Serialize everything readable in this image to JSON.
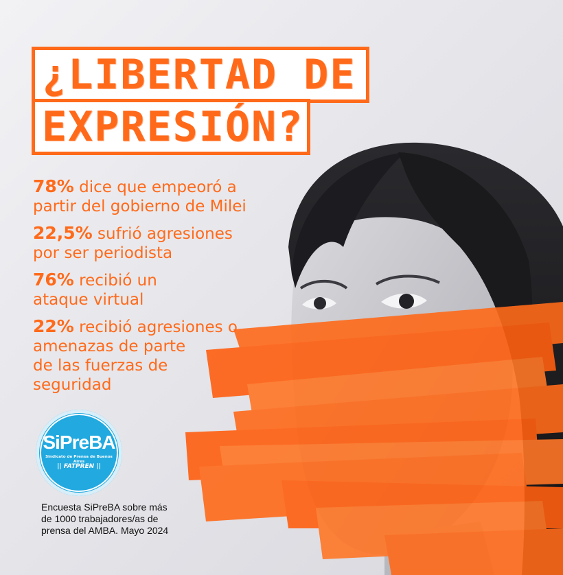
{
  "title": {
    "line1": "¿LIBERTAD DE",
    "line2": "EXPRESIÓN?"
  },
  "stats": [
    {
      "pct": "78%",
      "line1": " dice que empeoró a",
      "line2": "partir del gobierno de Milei"
    },
    {
      "pct": "22,5%",
      "line1": " sufrió agresiones",
      "line2": "por ser periodista"
    },
    {
      "pct": "76%",
      "line1": " recibió un",
      "line2": "ataque virtual"
    },
    {
      "pct": "22%",
      "line1": " recibió agresiones o",
      "line2": "amenazas de parte",
      "line3": "de las fuerzas de",
      "line4": "seguridad"
    }
  ],
  "logo": {
    "name": "SiPreBA",
    "subtitle": "Sindicato de Prensa de Buenos Aires",
    "federation": "|| FATPREN ||"
  },
  "source": {
    "line1": "Encuesta SiPreBA sobre más",
    "line2": "de 1000 trabajadores/as de",
    "line3": "prensa del AMBA. Mayo 2024"
  },
  "colors": {
    "accent": "#ff6a1a",
    "logo_blue": "#21a9e0"
  }
}
